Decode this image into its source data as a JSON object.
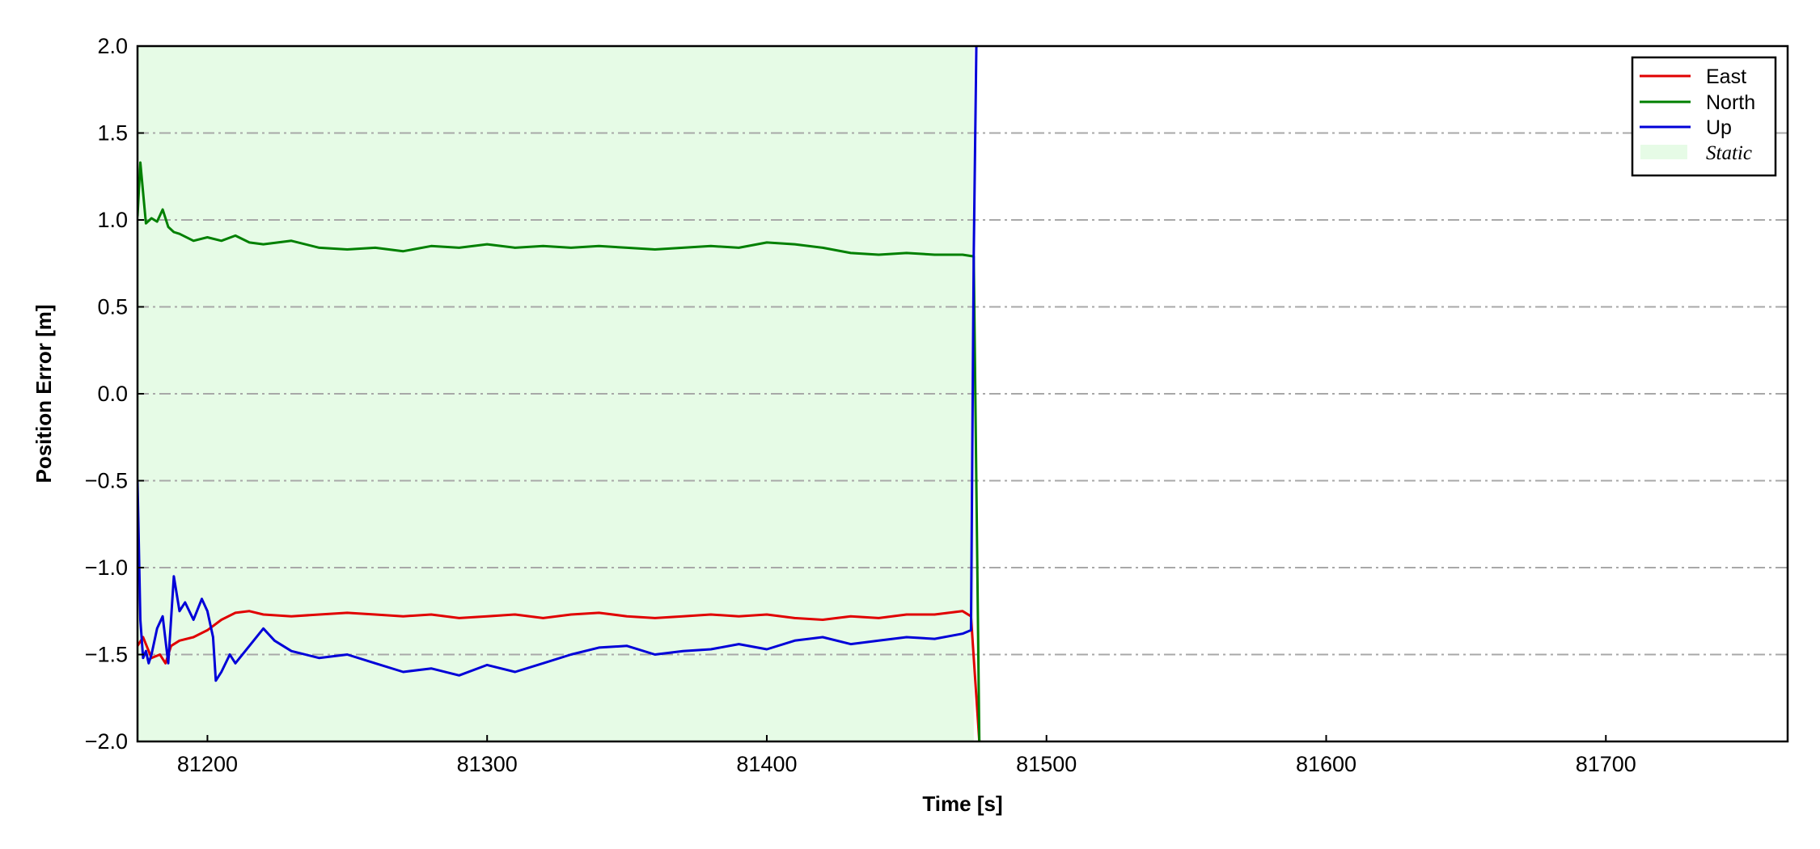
{
  "chart_data": {
    "type": "line",
    "xlabel": "Time [s]",
    "ylabel": "Position Error [m]",
    "xlim": [
      81175,
      81765
    ],
    "ylim": [
      -2.0,
      2.0
    ],
    "xticks": [
      81200,
      81300,
      81400,
      81500,
      81600,
      81700
    ],
    "yticks": [
      2.0,
      1.5,
      1.0,
      0.5,
      0.0,
      -0.5,
      -1.0,
      -1.5,
      -2.0
    ],
    "ytick_labels": [
      "2.0",
      "1.5",
      "1.0",
      "0.5",
      "0.0",
      "−0.5",
      "−1.0",
      "−1.5",
      "−2.0"
    ],
    "grid": "horizontal dash-dot",
    "legend_position": "top-right",
    "shaded_region": {
      "label": "Static",
      "x_start": 81175,
      "x_end": 81474,
      "color": "#e6fbe6"
    },
    "series": [
      {
        "name": "East",
        "color": "#e00000",
        "x": [
          81175,
          81177,
          81180,
          81183,
          81185,
          81187,
          81190,
          81195,
          81200,
          81205,
          81210,
          81215,
          81220,
          81230,
          81240,
          81250,
          81260,
          81270,
          81280,
          81290,
          81300,
          81310,
          81320,
          81330,
          81340,
          81350,
          81360,
          81370,
          81380,
          81390,
          81400,
          81410,
          81420,
          81430,
          81440,
          81450,
          81460,
          81470,
          81473,
          81476
        ],
        "y": [
          -1.45,
          -1.4,
          -1.52,
          -1.5,
          -1.55,
          -1.45,
          -1.42,
          -1.4,
          -1.36,
          -1.3,
          -1.26,
          -1.25,
          -1.27,
          -1.28,
          -1.27,
          -1.26,
          -1.27,
          -1.28,
          -1.27,
          -1.29,
          -1.28,
          -1.27,
          -1.29,
          -1.27,
          -1.26,
          -1.28,
          -1.29,
          -1.28,
          -1.27,
          -1.28,
          -1.27,
          -1.29,
          -1.3,
          -1.28,
          -1.29,
          -1.27,
          -1.27,
          -1.25,
          -1.28,
          -2.0
        ]
      },
      {
        "name": "North",
        "color": "#008000",
        "x": [
          81175,
          81176,
          81178,
          81180,
          81182,
          81184,
          81186,
          81188,
          81190,
          81195,
          81200,
          81205,
          81210,
          81215,
          81220,
          81230,
          81240,
          81250,
          81260,
          81270,
          81280,
          81290,
          81300,
          81310,
          81320,
          81330,
          81340,
          81350,
          81360,
          81370,
          81380,
          81390,
          81400,
          81410,
          81420,
          81430,
          81440,
          81450,
          81460,
          81470,
          81474,
          81476
        ],
        "y": [
          1.02,
          1.33,
          0.98,
          1.01,
          0.99,
          1.06,
          0.96,
          0.93,
          0.92,
          0.88,
          0.9,
          0.88,
          0.91,
          0.87,
          0.86,
          0.88,
          0.84,
          0.83,
          0.84,
          0.82,
          0.85,
          0.84,
          0.86,
          0.84,
          0.85,
          0.84,
          0.85,
          0.84,
          0.83,
          0.84,
          0.85,
          0.84,
          0.87,
          0.86,
          0.84,
          0.81,
          0.8,
          0.81,
          0.8,
          0.8,
          0.79,
          -2.0
        ]
      },
      {
        "name": "Up",
        "color": "#0000d8",
        "x": [
          81175,
          81176,
          81177,
          81178,
          81179,
          81180,
          81182,
          81184,
          81186,
          81188,
          81190,
          81192,
          81195,
          81198,
          81200,
          81202,
          81203,
          81205,
          81208,
          81210,
          81215,
          81220,
          81224,
          81230,
          81240,
          81250,
          81260,
          81270,
          81280,
          81290,
          81300,
          81310,
          81320,
          81330,
          81340,
          81350,
          81360,
          81370,
          81380,
          81390,
          81400,
          81410,
          81420,
          81430,
          81440,
          81450,
          81460,
          81470,
          81473,
          81474,
          81475
        ],
        "y": [
          -0.5,
          -1.3,
          -1.52,
          -1.48,
          -1.55,
          -1.5,
          -1.35,
          -1.28,
          -1.55,
          -1.05,
          -1.25,
          -1.2,
          -1.3,
          -1.18,
          -1.25,
          -1.4,
          -1.65,
          -1.6,
          -1.5,
          -1.55,
          -1.45,
          -1.35,
          -1.42,
          -1.48,
          -1.52,
          -1.5,
          -1.55,
          -1.6,
          -1.58,
          -1.62,
          -1.56,
          -1.6,
          -1.55,
          -1.5,
          -1.46,
          -1.45,
          -1.5,
          -1.48,
          -1.47,
          -1.44,
          -1.47,
          -1.42,
          -1.4,
          -1.44,
          -1.42,
          -1.4,
          -1.41,
          -1.38,
          -1.36,
          0.8,
          2.1
        ]
      }
    ]
  }
}
